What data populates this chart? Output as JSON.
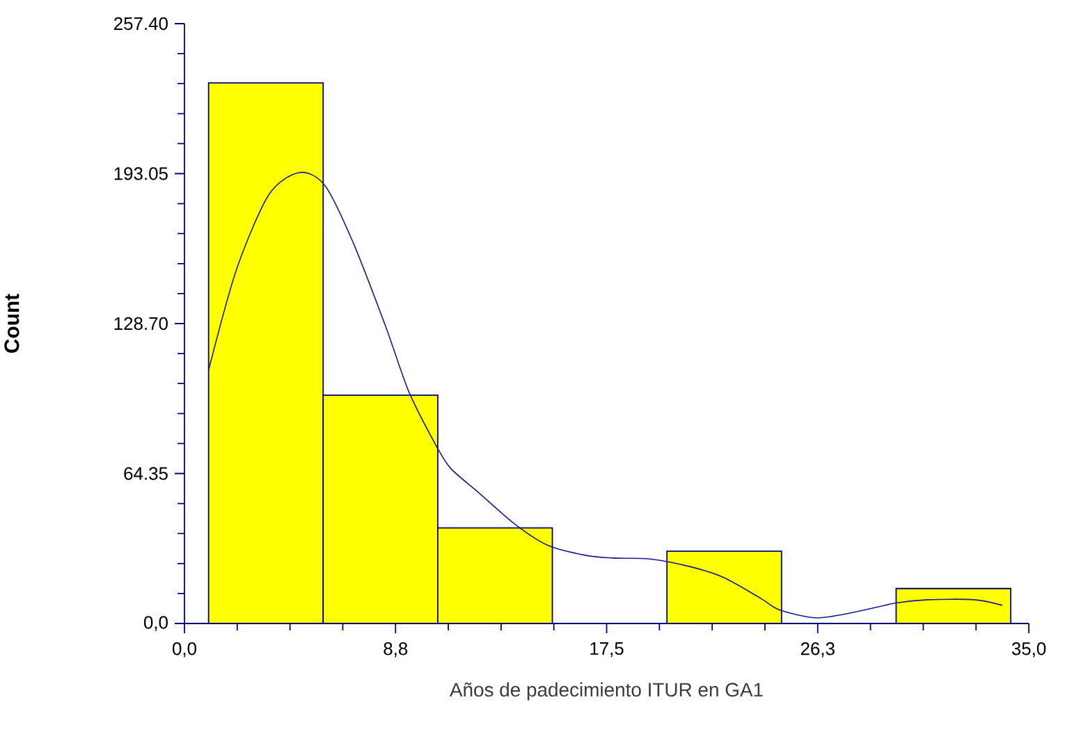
{
  "chart_data": {
    "type": "histogram",
    "xlabel": "Años de padecimiento ITUR en GA1",
    "ylabel": "Count",
    "bins": [
      1,
      5.75,
      10.5,
      15.25,
      20,
      24.75,
      29.5,
      34.25
    ],
    "values": [
      232,
      98,
      41,
      0,
      31,
      0,
      15
    ],
    "color": "#ffff00",
    "series": [
      {
        "type": "line",
        "color": "#1a1a8c",
        "x": [
          1.0,
          2.16,
          3.5,
          4.76,
          5.82,
          6.97,
          8.32,
          9.28,
          10.24,
          11.0,
          12.16,
          13.7,
          15.05,
          16.6,
          17.74,
          19.28,
          21.0,
          22.36,
          23.9,
          24.67,
          26.2,
          27.74,
          29.5,
          30.8,
          32.75,
          33.9
        ],
        "values": [
          108.7,
          152,
          184,
          193.5,
          188,
          164,
          128,
          100,
          80,
          67,
          56.5,
          42.6,
          33.6,
          29.3,
          28.1,
          27.7,
          24.3,
          19.7,
          10.7,
          5.8,
          2.4,
          4.8,
          8.8,
          10.2,
          10.2,
          7.8
        ]
      }
    ],
    "xlim": [
      0,
      35
    ],
    "ylim": [
      0,
      257.4
    ],
    "xticks": [
      {
        "value": 0,
        "label": "0,0"
      },
      {
        "value": 8.75,
        "label": "8,8"
      },
      {
        "value": 17.5,
        "label": "17,5"
      },
      {
        "value": 26.25,
        "label": "26,3"
      },
      {
        "value": 35,
        "label": "35,0"
      }
    ],
    "yticks": [
      {
        "value": 0,
        "label": "0,0"
      },
      {
        "value": 64.35,
        "label": "64.35"
      },
      {
        "value": 128.7,
        "label": "128.70"
      },
      {
        "value": 193.05,
        "label": "193.05"
      },
      {
        "value": 257.4,
        "label": "257.40"
      }
    ],
    "grid": false
  }
}
